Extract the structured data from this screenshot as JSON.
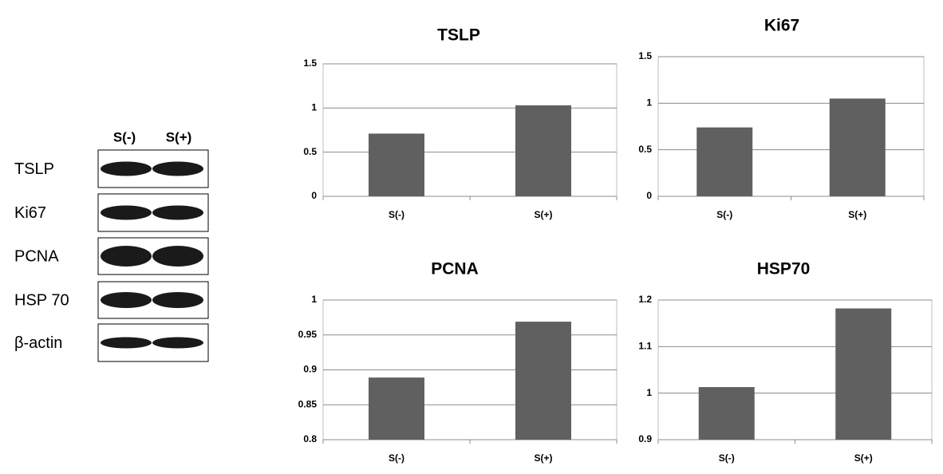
{
  "blot": {
    "lanes": [
      "S(-)",
      "S(+)"
    ],
    "rows": [
      "TSLP",
      "Ki67",
      "PCNA",
      "HSP 70",
      "β-actin"
    ]
  },
  "chart_data": [
    {
      "type": "bar",
      "title": "TSLP",
      "categories": [
        "S(-)",
        "S(+)"
      ],
      "values": [
        0.71,
        1.03
      ],
      "color": "#606060",
      "ylim": [
        0,
        1.5
      ],
      "yticks": [
        0,
        0.5,
        1,
        1.5
      ],
      "grid": true
    },
    {
      "type": "bar",
      "title": "Ki67",
      "categories": [
        "S(-)",
        "S(+)"
      ],
      "values": [
        0.74,
        1.05
      ],
      "color": "#606060",
      "ylim": [
        0,
        1.5
      ],
      "yticks": [
        0,
        0.5,
        1,
        1.5
      ],
      "grid": true
    },
    {
      "type": "bar",
      "title": "PCNA",
      "categories": [
        "S(-)",
        "S(+)"
      ],
      "values": [
        0.889,
        0.969
      ],
      "color": "#606060",
      "ylim": [
        0.8,
        1
      ],
      "yticks": [
        0.8,
        0.85,
        0.9,
        0.95,
        1
      ],
      "grid": true
    },
    {
      "type": "bar",
      "title": "HSP70",
      "categories": [
        "S(-)",
        "S(+)"
      ],
      "values": [
        1.013,
        1.182
      ],
      "color": "#606060",
      "ylim": [
        0.9,
        1.2
      ],
      "yticks": [
        0.9,
        1,
        1.1,
        1.2
      ],
      "grid": true
    }
  ]
}
